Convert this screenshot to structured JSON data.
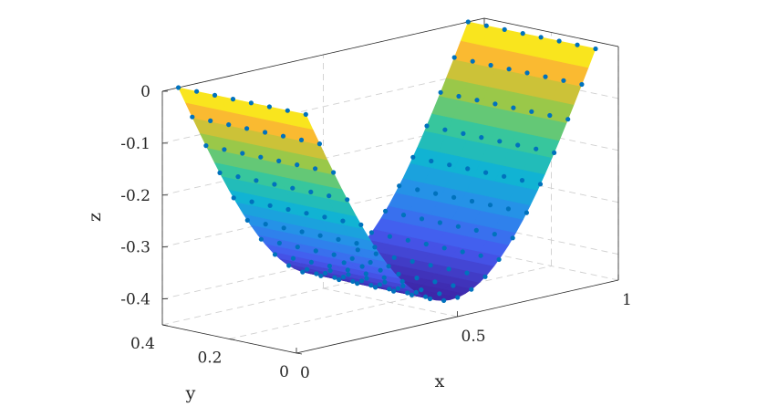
{
  "chart_data": {
    "type": "surface3d",
    "xlabel": "x",
    "ylabel": "y",
    "zlabel": "z",
    "xlim": [
      0,
      1
    ],
    "ylim": [
      0,
      0.4
    ],
    "zlim": [
      -0.45,
      0
    ],
    "grid": true,
    "colormap": "parula",
    "x_ticks": [
      {
        "value": 0,
        "label": "0"
      },
      {
        "value": 0.5,
        "label": "0.5"
      },
      {
        "value": 1,
        "label": "1"
      }
    ],
    "y_ticks": [
      {
        "value": 0,
        "label": "0"
      },
      {
        "value": 0.2,
        "label": "0.2"
      },
      {
        "value": 0.4,
        "label": "0.4"
      }
    ],
    "z_ticks": [
      {
        "value": 0,
        "label": "0"
      },
      {
        "value": -0.1,
        "label": "-0.1"
      },
      {
        "value": -0.2,
        "label": "-0.2"
      },
      {
        "value": -0.3,
        "label": "-0.3"
      },
      {
        "value": -0.4,
        "label": "-0.4"
      }
    ],
    "surface": {
      "description_free": true,
      "x_range": [
        0.05,
        0.95
      ],
      "y_range": [
        0.02,
        0.4
      ],
      "z_min": -0.42,
      "z_max": 0
    },
    "points": {
      "color": "#0072BD",
      "nx": 22,
      "ny": 8,
      "x_range": [
        0.05,
        0.95
      ],
      "y_range": [
        0.02,
        0.4
      ],
      "z_min": -0.42
    }
  }
}
